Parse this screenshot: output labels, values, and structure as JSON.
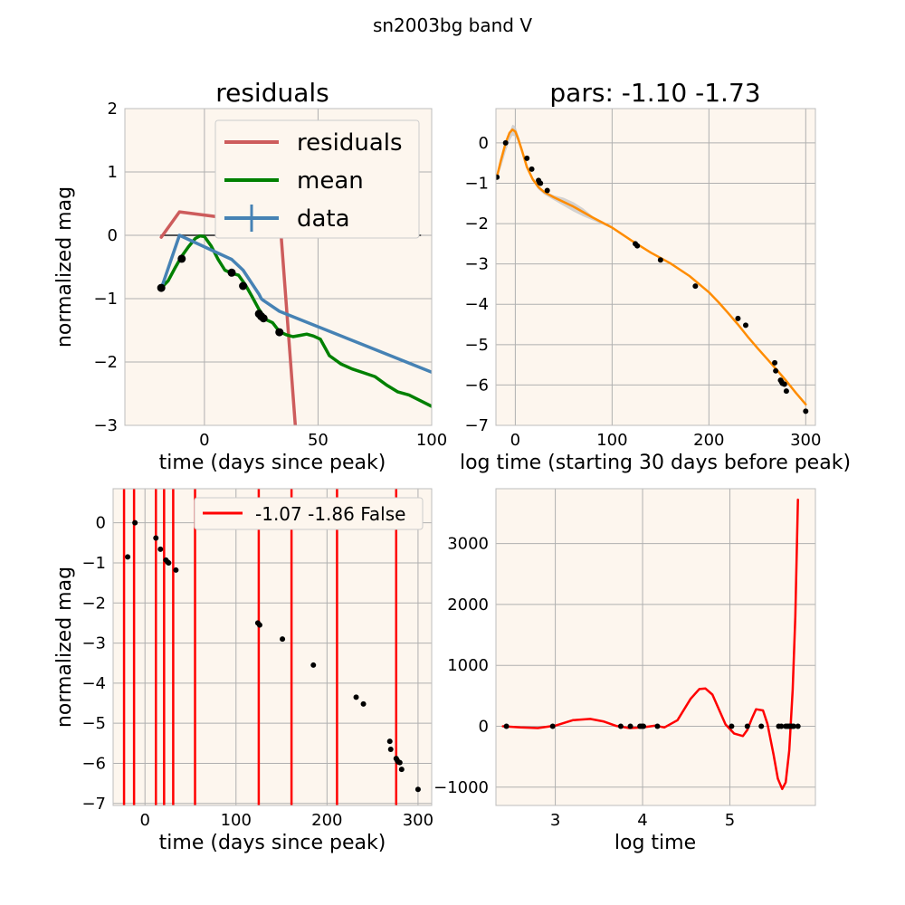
{
  "figure": {
    "suptitle": "sn2003bg band V"
  },
  "colors": {
    "panel_bg": "#fdf6ee",
    "grid": "#b0b0b0",
    "residuals": "#cd5c5c",
    "mean": "#008000",
    "data": "#4682b4",
    "fit": "#ff8c00",
    "band": "#c8c8c8",
    "red": "#ff0000",
    "points": "#000000"
  },
  "chart_data": [
    {
      "type": "line",
      "title": "residuals",
      "xlabel": "time (days since peak)",
      "ylabel": "normalized mag",
      "xlim": [
        -35,
        100
      ],
      "ylim": [
        -3,
        2
      ],
      "xticks": [
        0,
        50,
        100
      ],
      "yticks": [
        -3,
        -2,
        -1,
        0,
        1,
        2
      ],
      "legend": {
        "position": "top-right",
        "entries": [
          "residuals",
          "mean",
          "data"
        ]
      },
      "series": [
        {
          "name": "residuals",
          "x": [
            -19,
            -11,
            17,
            25,
            33,
            40
          ],
          "y": [
            -0.03,
            0.37,
            0.24,
            0.32,
            0.35,
            -3.0
          ]
        },
        {
          "name": "mean",
          "x": [
            -19,
            -16,
            -13,
            -10,
            -7,
            -4,
            -2,
            0,
            3,
            6,
            9,
            12,
            15,
            18,
            21,
            24,
            27,
            30,
            33,
            36,
            39,
            42,
            45,
            48,
            51,
            55,
            60,
            65,
            70,
            75,
            80,
            85,
            90,
            95,
            100
          ],
          "y": [
            -0.83,
            -0.72,
            -0.52,
            -0.33,
            -0.18,
            -0.05,
            -0.01,
            -0.02,
            -0.17,
            -0.38,
            -0.55,
            -0.6,
            -0.63,
            -0.78,
            -0.97,
            -1.17,
            -1.33,
            -1.38,
            -1.52,
            -1.57,
            -1.6,
            -1.58,
            -1.56,
            -1.59,
            -1.64,
            -1.9,
            -2.03,
            -2.11,
            -2.17,
            -2.23,
            -2.36,
            -2.47,
            -2.52,
            -2.61,
            -2.7
          ]
        },
        {
          "name": "data",
          "x": [
            -19,
            -11,
            12,
            17,
            24,
            25,
            26,
            33,
            100
          ],
          "y": [
            -0.84,
            0.0,
            -0.38,
            -0.55,
            -0.93,
            -1.0,
            -1.03,
            -1.2,
            -2.16
          ]
        }
      ],
      "points": {
        "x": [
          -19,
          -10,
          12,
          17,
          24,
          25,
          26,
          33
        ],
        "y": [
          -0.83,
          -0.37,
          -0.59,
          -0.8,
          -1.24,
          -1.28,
          -1.31,
          -1.53
        ]
      },
      "baseline": {
        "x": [
          -19,
          95
        ],
        "y": [
          0,
          0
        ]
      }
    },
    {
      "type": "line",
      "title": "pars: -1.10 -1.73",
      "xlabel": "log time (starting 30 days before peak)",
      "ylabel": "",
      "xlim": [
        -20,
        310
      ],
      "ylim": [
        -7,
        0.85
      ],
      "xticks": [
        0,
        100,
        200,
        300
      ],
      "yticks": [
        -7,
        -6,
        -5,
        -4,
        -3,
        -2,
        -1,
        0
      ],
      "band_series": {
        "x": [
          -19,
          -14,
          -10,
          -6,
          -3,
          0,
          3,
          7,
          12,
          18,
          24,
          30,
          40,
          50,
          60,
          70,
          80,
          90,
          100
        ],
        "upper": [
          -0.78,
          -0.35,
          0.0,
          0.27,
          0.45,
          0.42,
          0.2,
          -0.12,
          -0.52,
          -0.86,
          -1.08,
          -1.2,
          -1.3,
          -1.36,
          -1.47,
          -1.62,
          -1.82,
          -1.97,
          -2.1
        ],
        "lower": [
          -0.9,
          -0.55,
          -0.22,
          0.05,
          0.18,
          0.16,
          0.0,
          -0.3,
          -0.64,
          -0.95,
          -1.16,
          -1.28,
          -1.42,
          -1.56,
          -1.7,
          -1.82,
          -1.92,
          -2.02,
          -2.12
        ]
      },
      "series": [
        {
          "name": "fit",
          "x": [
            -19,
            -15,
            -10,
            -6,
            -3,
            0,
            3,
            7,
            12,
            18,
            24,
            30,
            40,
            60,
            80,
            100,
            120,
            140,
            160,
            180,
            200,
            210,
            220,
            230,
            240,
            250,
            260,
            270,
            280,
            290,
            300
          ],
          "y": [
            -0.84,
            -0.45,
            0.0,
            0.25,
            0.33,
            0.28,
            0.1,
            -0.2,
            -0.6,
            -0.9,
            -1.1,
            -1.22,
            -1.35,
            -1.58,
            -1.85,
            -2.1,
            -2.42,
            -2.72,
            -2.98,
            -3.3,
            -3.7,
            -3.95,
            -4.22,
            -4.5,
            -4.8,
            -5.08,
            -5.35,
            -5.62,
            -5.9,
            -6.2,
            -6.48
          ]
        }
      ],
      "points": {
        "x": [
          -19,
          -10,
          12,
          17,
          24,
          25,
          26,
          33,
          124,
          126,
          150,
          186,
          230,
          238,
          268,
          269,
          274,
          275,
          276,
          278,
          280,
          300
        ],
        "y": [
          -0.85,
          0.0,
          -0.38,
          -0.65,
          -0.93,
          -0.98,
          -1.0,
          -1.18,
          -2.5,
          -2.55,
          -2.9,
          -3.55,
          -4.35,
          -4.52,
          -5.45,
          -5.65,
          -5.88,
          -5.92,
          -5.96,
          -5.98,
          -6.15,
          -6.65
        ]
      }
    },
    {
      "type": "line",
      "title": "",
      "xlabel": "time (days since peak)",
      "ylabel": "normalized mag",
      "xlim": [
        -35,
        315
      ],
      "ylim": [
        -7.05,
        0.85
      ],
      "xticks": [
        0,
        100,
        200,
        300
      ],
      "yticks": [
        -7,
        -6,
        -5,
        -4,
        -3,
        -2,
        -1,
        0
      ],
      "legend": {
        "position": "top-right",
        "entries": [
          "-1.07 -1.86 False"
        ]
      },
      "vlines": [
        -23,
        -12,
        12,
        21,
        31,
        55,
        125,
        161,
        211,
        276
      ],
      "points": {
        "x": [
          -19,
          -11,
          12,
          17,
          23,
          25,
          26,
          34,
          124,
          126,
          151,
          185,
          232,
          240,
          269,
          270,
          276,
          277,
          278,
          280,
          282,
          300
        ],
        "y": [
          -0.85,
          0.0,
          -0.38,
          -0.66,
          -0.93,
          -0.98,
          -1.0,
          -1.18,
          -2.5,
          -2.55,
          -2.9,
          -3.55,
          -4.35,
          -4.52,
          -5.45,
          -5.65,
          -5.88,
          -5.92,
          -5.96,
          -5.98,
          -6.15,
          -6.65
        ]
      }
    },
    {
      "type": "line",
      "title": "",
      "xlabel": "log time",
      "ylabel": "",
      "xlim": [
        2.32,
        5.98
      ],
      "ylim": [
        -1300,
        3900
      ],
      "xticks": [
        3,
        4,
        5
      ],
      "yticks": [
        -1000,
        0,
        1000,
        2000,
        3000
      ],
      "series": [
        {
          "name": "curve",
          "x": [
            2.4,
            2.6,
            2.8,
            3.0,
            3.2,
            3.4,
            3.55,
            3.7,
            3.85,
            4.0,
            4.15,
            4.25,
            4.4,
            4.55,
            4.65,
            4.72,
            4.8,
            4.88,
            4.95,
            5.05,
            5.15,
            5.2,
            5.25,
            5.3,
            5.38,
            5.43,
            5.5,
            5.55,
            5.6,
            5.64,
            5.68,
            5.72,
            5.75,
            5.78
          ],
          "y": [
            0,
            -20,
            -30,
            10,
            100,
            120,
            80,
            5,
            -30,
            -20,
            10,
            -20,
            100,
            450,
            610,
            620,
            520,
            260,
            30,
            -120,
            -160,
            -60,
            120,
            280,
            260,
            40,
            -460,
            -860,
            -1030,
            -920,
            -400,
            600,
            1800,
            3720
          ]
        }
      ],
      "points": {
        "x": [
          2.44,
          2.97,
          3.75,
          3.86,
          3.97,
          3.99,
          4.01,
          4.17,
          5.02,
          5.2,
          5.36,
          5.56,
          5.59,
          5.64,
          5.66,
          5.68,
          5.69,
          5.71,
          5.73,
          5.78
        ],
        "y": [
          0,
          0,
          0,
          0,
          0,
          0,
          0,
          0,
          0,
          0,
          0,
          0,
          0,
          0,
          0,
          0,
          0,
          0,
          0,
          0
        ]
      }
    }
  ]
}
